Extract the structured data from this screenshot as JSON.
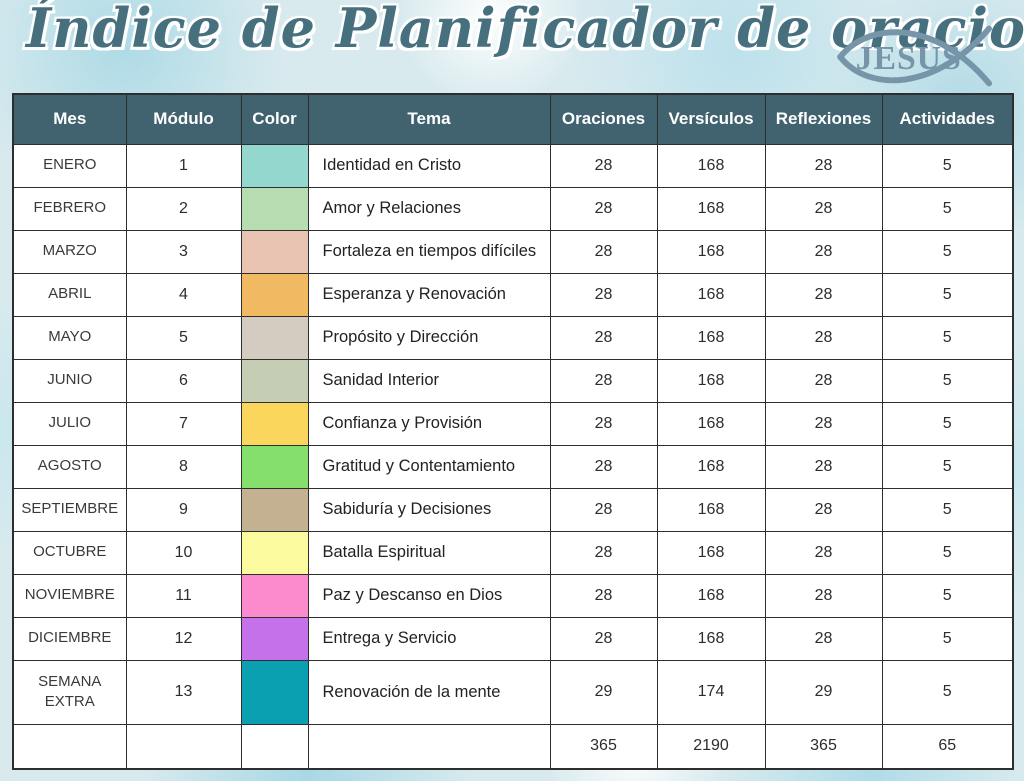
{
  "page": {
    "title": "Índice de Planificador de oraciones",
    "logo": {
      "icon": "jesus-fish-icon",
      "text": "JESUS",
      "color": "#7695a8"
    }
  },
  "colors": {
    "header_bg": "#40636f",
    "title_text": "#47707f",
    "table_border": "#2e2e2e",
    "background_base": "#d8eaee"
  },
  "table": {
    "columns": [
      {
        "key": "mes",
        "label": "Mes"
      },
      {
        "key": "modulo",
        "label": "Módulo"
      },
      {
        "key": "color",
        "label": "Color"
      },
      {
        "key": "tema",
        "label": "Tema"
      },
      {
        "key": "oraciones",
        "label": "Oraciones"
      },
      {
        "key": "versiculos",
        "label": "Versículos"
      },
      {
        "key": "reflexiones",
        "label": "Reflexiones"
      },
      {
        "key": "actividades",
        "label": "Actividades"
      }
    ],
    "rows": [
      {
        "mes": "ENERO",
        "modulo": "1",
        "color_hex": "#93d7cf",
        "tema": "Identidad en Cristo",
        "oraciones": "28",
        "versiculos": "168",
        "reflexiones": "28",
        "actividades": "5"
      },
      {
        "mes": "FEBRERO",
        "modulo": "2",
        "color_hex": "#b7dcb2",
        "tema": "Amor y Relaciones",
        "oraciones": "28",
        "versiculos": "168",
        "reflexiones": "28",
        "actividades": "5"
      },
      {
        "mes": "MARZO",
        "modulo": "3",
        "color_hex": "#eac4b2",
        "tema": "Fortaleza en tiempos difíciles",
        "oraciones": "28",
        "versiculos": "168",
        "reflexiones": "28",
        "actividades": "5"
      },
      {
        "mes": "ABRIL",
        "modulo": "4",
        "color_hex": "#f1ba62",
        "tema": "Esperanza y Renovación",
        "oraciones": "28",
        "versiculos": "168",
        "reflexiones": "28",
        "actividades": "5"
      },
      {
        "mes": "MAYO",
        "modulo": "5",
        "color_hex": "#d5ccc1",
        "tema": "Propósito y Dirección",
        "oraciones": "28",
        "versiculos": "168",
        "reflexiones": "28",
        "actividades": "5"
      },
      {
        "mes": "JUNIO",
        "modulo": "6",
        "color_hex": "#c5ceb5",
        "tema": "Sanidad Interior",
        "oraciones": "28",
        "versiculos": "168",
        "reflexiones": "28",
        "actividades": "5"
      },
      {
        "mes": "JULIO",
        "modulo": "7",
        "color_hex": "#fbd65c",
        "tema": "Confianza y Provisión",
        "oraciones": "28",
        "versiculos": "168",
        "reflexiones": "28",
        "actividades": "5"
      },
      {
        "mes": "AGOSTO",
        "modulo": "8",
        "color_hex": "#85df6d",
        "tema": "Gratitud y Contentamiento",
        "oraciones": "28",
        "versiculos": "168",
        "reflexiones": "28",
        "actividades": "5"
      },
      {
        "mes": "SEPTIEMBRE",
        "modulo": "9",
        "color_hex": "#c3b192",
        "tema": "Sabiduría y Decisiones",
        "oraciones": "28",
        "versiculos": "168",
        "reflexiones": "28",
        "actividades": "5"
      },
      {
        "mes": "OCTUBRE",
        "modulo": "10",
        "color_hex": "#fbfa9f",
        "tema": "Batalla Espiritual",
        "oraciones": "28",
        "versiculos": "168",
        "reflexiones": "28",
        "actividades": "5"
      },
      {
        "mes": "NOVIEMBRE",
        "modulo": "11",
        "color_hex": "#fc8bce",
        "tema": "Paz y Descanso en Dios",
        "oraciones": "28",
        "versiculos": "168",
        "reflexiones": "28",
        "actividades": "5"
      },
      {
        "mes": "DICIEMBRE",
        "modulo": "12",
        "color_hex": "#c571e9",
        "tema": "Entrega y Servicio",
        "oraciones": "28",
        "versiculos": "168",
        "reflexiones": "28",
        "actividades": "5"
      },
      {
        "mes": "SEMANA EXTRA",
        "modulo": "13",
        "color_hex": "#0aa0b1",
        "tema": "Renovación de la mente",
        "oraciones": "29",
        "versiculos": "174",
        "reflexiones": "29",
        "actividades": "5"
      }
    ],
    "totals": {
      "mes": "",
      "modulo": "",
      "color_hex": "",
      "tema": "",
      "oraciones": "365",
      "versiculos": "2190",
      "reflexiones": "365",
      "actividades": "65"
    }
  }
}
